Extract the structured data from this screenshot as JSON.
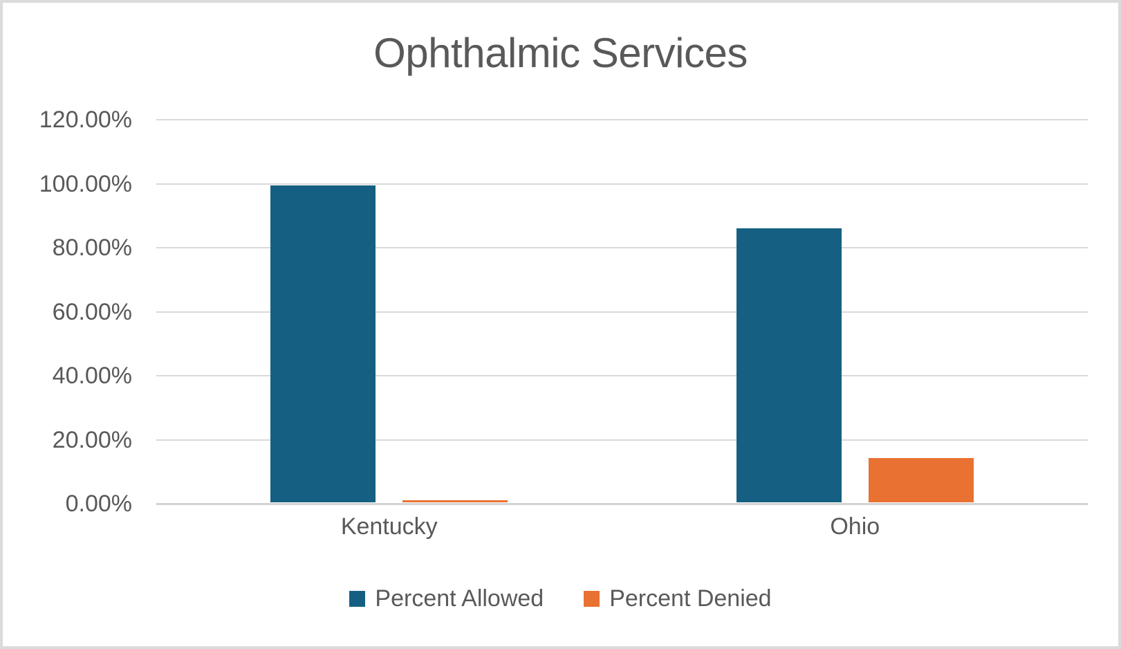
{
  "title": "Ophthalmic Services",
  "colors": {
    "series_allowed": "#156082",
    "series_denied": "#E97132",
    "text": "#595959",
    "gridline": "#D9D9D9",
    "canvas_border": "#DBDBDB"
  },
  "legend": {
    "position": "bottom",
    "items": [
      "Percent Allowed",
      "Percent Denied"
    ]
  },
  "chart_data": {
    "type": "bar",
    "title": "Ophthalmic Services",
    "categories": [
      "Kentucky",
      "Ohio"
    ],
    "series": [
      {
        "name": "Percent Allowed",
        "color": "#156082",
        "values": [
          99.0,
          85.7
        ]
      },
      {
        "name": "Percent Denied",
        "color": "#E97132",
        "values": [
          0.7,
          13.8
        ]
      }
    ],
    "xlabel": "",
    "ylabel": "",
    "ylim": [
      0,
      120
    ],
    "ytick_step": 20,
    "ytick_labels": [
      "0.00%",
      "20.00%",
      "40.00%",
      "60.00%",
      "80.00%",
      "100.00%",
      "120.00%"
    ],
    "grid": true,
    "legend_position": "bottom"
  }
}
